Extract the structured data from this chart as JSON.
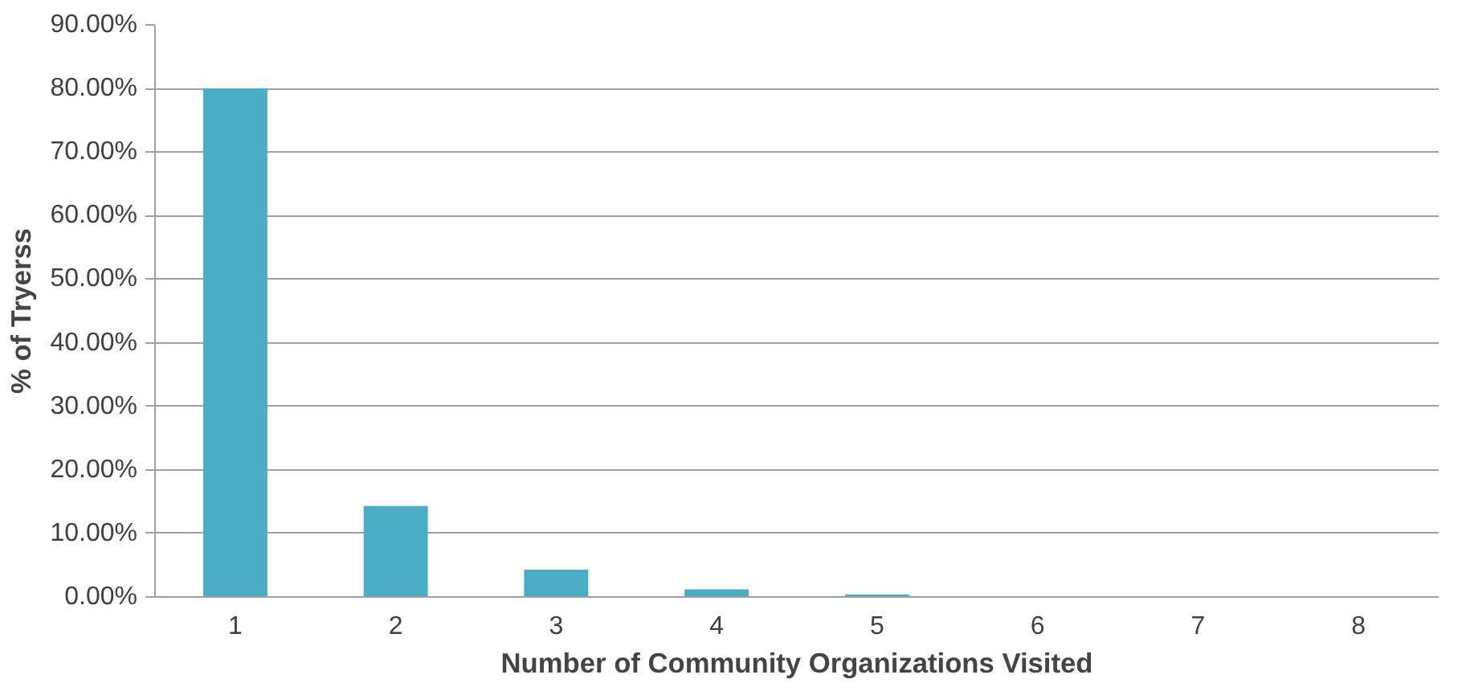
{
  "chart_data": {
    "type": "bar",
    "xlabel": "Number of Community Organizations Visited",
    "ylabel": "% of Tryerss",
    "categories": [
      "1",
      "2",
      "3",
      "4",
      "5",
      "6",
      "7",
      "8"
    ],
    "values": [
      80,
      14.3,
      4.3,
      1.2,
      0.4,
      0,
      0,
      0
    ],
    "color": "#4bacc6",
    "ylim": [
      0,
      90
    ],
    "yticks": [
      {
        "value": 0,
        "label": "0.00%"
      },
      {
        "value": 10,
        "label": "10.00%"
      },
      {
        "value": 20,
        "label": "20.00%"
      },
      {
        "value": 30,
        "label": "30.00%"
      },
      {
        "value": 40,
        "label": "40.00%"
      },
      {
        "value": 50,
        "label": "50.00%"
      },
      {
        "value": 60,
        "label": "60.00%"
      },
      {
        "value": 70,
        "label": "70.00%"
      },
      {
        "value": 80,
        "label": "80.00%"
      },
      {
        "value": 90,
        "label": "90.00%"
      }
    ],
    "grid": "y"
  }
}
